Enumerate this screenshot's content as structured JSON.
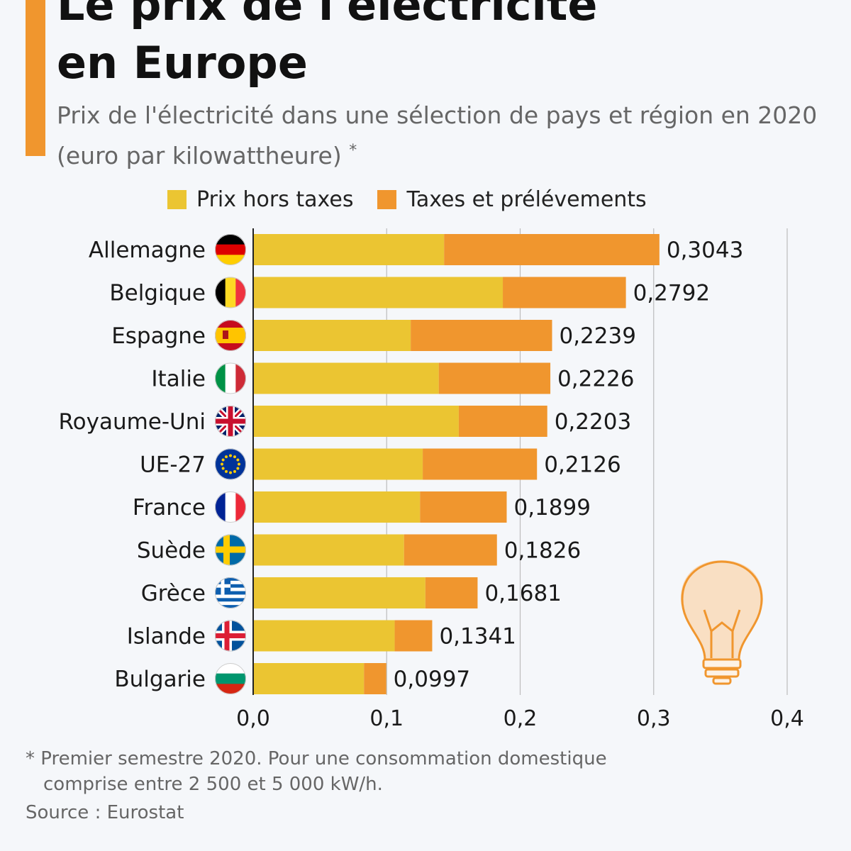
{
  "header": {
    "title_line1": "Le prix de l'électricité",
    "title_line2": "en Europe",
    "subtitle": "Prix de l'électricité dans une sélection de pays et région en 2020 (euro par kilowattheure)",
    "subtitle_mark": "*"
  },
  "legend": {
    "items": [
      {
        "label": "Prix hors taxes",
        "color": "#ebc532"
      },
      {
        "label": "Taxes et prélévements",
        "color": "#f0962e"
      }
    ]
  },
  "chart_data": {
    "type": "bar",
    "orientation": "horizontal",
    "stacked": true,
    "categories": [
      "Allemagne",
      "Belgique",
      "Espagne",
      "Italie",
      "Royaume-Uni",
      "UE-27",
      "France",
      "Suède",
      "Grèce",
      "Islande",
      "Bulgarie"
    ],
    "flags": [
      "flag-germany",
      "flag-belgium",
      "flag-spain",
      "flag-italy",
      "flag-uk",
      "flag-eu",
      "flag-france",
      "flag-sweden",
      "flag-greece",
      "flag-iceland",
      "flag-bulgaria"
    ],
    "series": [
      {
        "name": "Prix hors taxes",
        "color": "#ebc532",
        "values": [
          0.143,
          0.187,
          0.118,
          0.139,
          0.154,
          0.127,
          0.125,
          0.113,
          0.129,
          0.106,
          0.083
        ]
      },
      {
        "name": "Taxes et prélévements",
        "color": "#f0962e",
        "values": [
          0.1613,
          0.0922,
          0.1059,
          0.0836,
          0.0663,
          0.0856,
          0.0649,
          0.0696,
          0.0391,
          0.0281,
          0.0167
        ]
      }
    ],
    "totals": [
      0.3043,
      0.2792,
      0.2239,
      0.2226,
      0.2203,
      0.2126,
      0.1899,
      0.1826,
      0.1681,
      0.1341,
      0.0997
    ],
    "total_labels": [
      "0,3043",
      "0,2792",
      "0,2239",
      "0,2226",
      "0,2203",
      "0,2126",
      "0,1899",
      "0,1826",
      "0,1681",
      "0,1341",
      "0,0997"
    ],
    "xlim": [
      0,
      0.4
    ],
    "x_ticks": [
      0,
      0.1,
      0.2,
      0.3,
      0.4
    ],
    "x_tick_labels": [
      "0,0",
      "0,1",
      "0,2",
      "0,3",
      "0,4"
    ],
    "grid": true,
    "legend_position": "top"
  },
  "decoration": {
    "icon": "lightbulb-icon"
  },
  "footer": {
    "footnote_line1": "* Premier semestre 2020. Pour une consommation domestique",
    "footnote_line2": "comprise entre 2 500 et 5 000 kW/h.",
    "source": "Source : Eurostat"
  }
}
